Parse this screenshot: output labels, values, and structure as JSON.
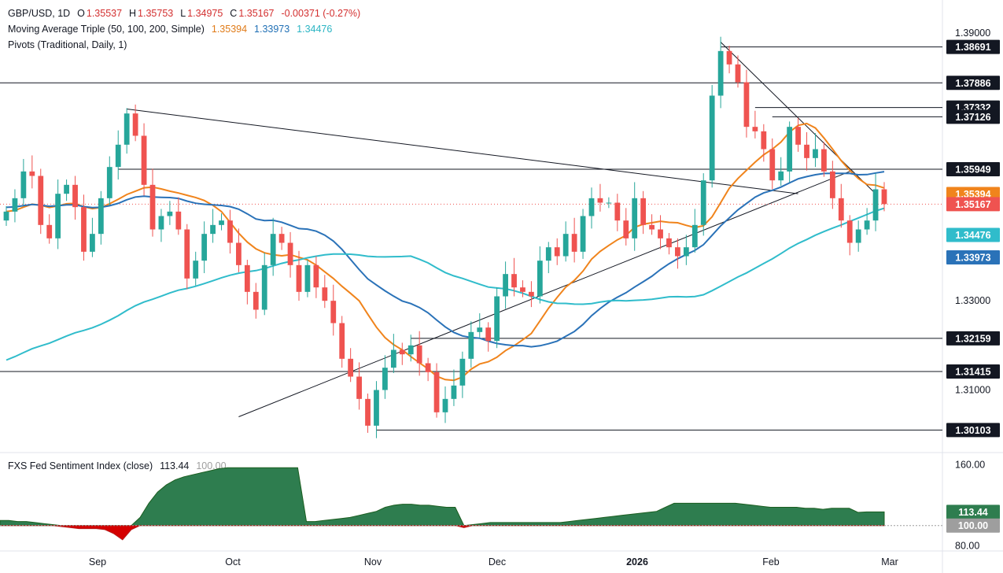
{
  "header": {
    "symbol": "GBP/USD, 1D",
    "o_label": "O",
    "o": "1.35537",
    "h_label": "H",
    "h": "1.35753",
    "l_label": "L",
    "l": "1.34975",
    "c_label": "C",
    "c": "1.35167",
    "change": "-0.00371 (-0.27%)"
  },
  "ma_legend": {
    "label": "Moving Average Triple (50, 100, 200, Simple)",
    "ma50": "1.35394",
    "ma100": "1.33973",
    "ma200": "1.34476"
  },
  "pivots_legend": {
    "label": "Pivots (Traditional, Daily, 1)"
  },
  "indicator_legend": {
    "label": "FXS Fed Sentiment Index (close)",
    "value": "113.44",
    "baseline": "100.00"
  },
  "colors": {
    "up": "#26a69a",
    "down": "#ef5350",
    "ma50": "#f0841c",
    "ma100": "#2a72b8",
    "ma200": "#30bccb",
    "sentiment_fill": "#2e7d4f",
    "sentiment_neg": "#d50000"
  },
  "chart_data": [
    {
      "type": "candlestick",
      "title": "GBP/USD, 1D",
      "ylim": [
        1.2965,
        1.3925
      ],
      "x_ticks": [
        "Sep",
        "Oct",
        "Nov",
        "Dec",
        "2026",
        "Feb",
        "Mar"
      ],
      "y_ticks": [
        "1.39000",
        "1.33000",
        "1.31000"
      ],
      "price_labels": [
        {
          "value": "1.38691",
          "kind": "level"
        },
        {
          "value": "1.37886",
          "kind": "level"
        },
        {
          "value": "1.37332",
          "kind": "level"
        },
        {
          "value": "1.37126",
          "kind": "level"
        },
        {
          "value": "1.35949",
          "kind": "level"
        },
        {
          "value": "1.35394",
          "kind": "ma50"
        },
        {
          "value": "1.35167",
          "kind": "last"
        },
        {
          "value": "1.34476",
          "kind": "ma200"
        },
        {
          "value": "1.33973",
          "kind": "ma100"
        },
        {
          "value": "1.32159",
          "kind": "level"
        },
        {
          "value": "1.31415",
          "kind": "level"
        },
        {
          "value": "1.30103",
          "kind": "level"
        }
      ],
      "pivot_levels": [
        1.38691,
        1.37886,
        1.37332,
        1.37126,
        1.35949,
        1.32159,
        1.31415,
        1.30103
      ],
      "close_path": [
        1.35,
        1.353,
        1.359,
        1.358,
        1.347,
        1.344,
        1.354,
        1.356,
        1.351,
        1.341,
        1.345,
        1.353,
        1.36,
        1.365,
        1.372,
        1.367,
        1.356,
        1.346,
        1.349,
        1.35,
        1.346,
        1.335,
        1.339,
        1.345,
        1.347,
        1.348,
        1.343,
        1.338,
        1.332,
        1.328,
        1.338,
        1.345,
        1.343,
        1.338,
        1.332,
        1.338,
        1.333,
        1.33,
        1.325,
        1.317,
        1.313,
        1.308,
        1.302,
        1.31,
        1.315,
        1.319,
        1.318,
        1.32,
        1.316,
        1.314,
        1.305,
        1.308,
        1.311,
        1.317,
        1.323,
        1.324,
        1.321,
        1.331,
        1.336,
        1.333,
        1.332,
        1.331,
        1.339,
        1.342,
        1.34,
        1.345,
        1.341,
        1.349,
        1.353,
        1.352,
        1.352,
        1.348,
        1.344,
        1.353,
        1.347,
        1.346,
        1.344,
        1.342,
        1.34,
        1.342,
        1.347,
        1.357,
        1.376,
        1.386,
        1.383,
        1.379,
        1.369,
        1.368,
        1.364,
        1.357,
        1.359,
        1.369,
        1.365,
        1.362,
        1.364,
        1.359,
        1.353,
        1.348,
        1.343,
        1.346,
        1.348,
        1.355,
        1.35167
      ],
      "series": [
        {
          "name": "Moving Average (50)",
          "last": 1.35394
        },
        {
          "name": "Moving Average (100)",
          "last": 1.33973
        },
        {
          "name": "Moving Average (200)",
          "last": 1.34476
        }
      ]
    },
    {
      "type": "area",
      "title": "FXS Fed Sentiment Index (close)",
      "ylim": [
        75,
        168
      ],
      "baseline": 100,
      "y_ticks": [
        "160.00",
        "80.00"
      ],
      "price_labels": [
        {
          "value": "113.44",
          "kind": "last"
        },
        {
          "value": "100.00",
          "kind": "baseline"
        }
      ],
      "values": [
        105,
        105,
        104,
        104,
        103,
        102,
        101,
        99,
        98,
        97,
        97,
        97,
        96,
        92,
        86,
        96,
        108,
        122,
        133,
        140,
        145,
        148,
        150,
        152,
        154,
        156,
        157,
        157,
        157,
        157,
        157,
        157,
        157,
        157,
        157,
        104,
        104,
        105,
        106,
        107,
        108,
        110,
        112,
        114,
        118,
        120,
        121,
        121,
        120,
        120,
        119,
        118,
        118,
        98,
        101,
        102,
        103,
        103,
        103,
        103,
        103,
        103,
        103,
        103,
        103,
        104,
        105,
        106,
        107,
        108,
        109,
        110,
        111,
        112,
        113,
        114,
        118,
        122,
        122,
        122,
        122,
        122,
        122,
        122,
        122,
        121,
        120,
        119,
        118,
        118,
        118,
        118,
        117,
        117,
        116,
        117,
        117,
        117,
        113,
        113.44,
        113.44,
        113.44
      ]
    }
  ]
}
